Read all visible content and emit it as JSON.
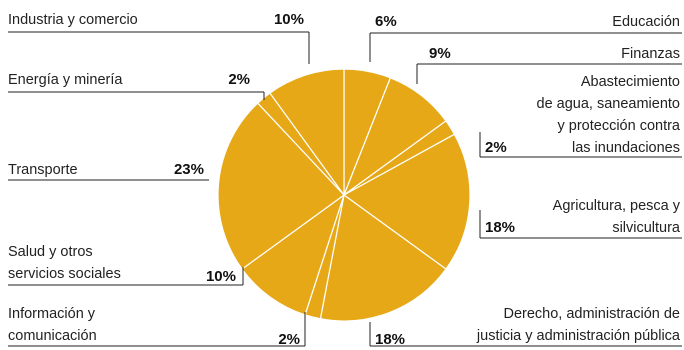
{
  "chart_data": {
    "type": "pie",
    "title": "",
    "slice_color": "#E6A817",
    "slices": [
      {
        "label": "Educación",
        "value": 6,
        "percent_label": "6%"
      },
      {
        "label": "Finanzas",
        "value": 9,
        "percent_label": "9%"
      },
      {
        "label": "Abastecimiento de agua, saneamiento y protección contra las inundaciones",
        "label_lines": [
          "Abastecimiento",
          "de agua, saneamiento",
          "y protección contra",
          "las inundaciones"
        ],
        "value": 2,
        "percent_label": "2%"
      },
      {
        "label": "Agricultura, pesca y silvicultura",
        "label_lines": [
          "Agricultura, pesca y",
          "silvicultura"
        ],
        "value": 18,
        "percent_label": "18%"
      },
      {
        "label": "Derecho, administración de justicia y administración pública",
        "label_lines": [
          "Derecho, administración de",
          "justicia y administración pública"
        ],
        "value": 18,
        "percent_label": "18%"
      },
      {
        "label": "Información y comunicación",
        "label_lines": [
          "Información y",
          "comunicación"
        ],
        "value": 2,
        "percent_label": "2%"
      },
      {
        "label": "Salud y otros servicios sociales",
        "label_lines": [
          "Salud y otros",
          "servicios sociales"
        ],
        "value": 10,
        "percent_label": "10%"
      },
      {
        "label": "Transporte",
        "label_lines": [
          "Transporte"
        ],
        "value": 23,
        "percent_label": "23%"
      },
      {
        "label": "Energía y minería",
        "label_lines": [
          "Energía y minería"
        ],
        "value": 2,
        "percent_label": "2%"
      },
      {
        "label": "Industria y comercio",
        "label_lines": [
          "Industria y comercio"
        ],
        "value": 10,
        "percent_label": "10%"
      }
    ]
  }
}
